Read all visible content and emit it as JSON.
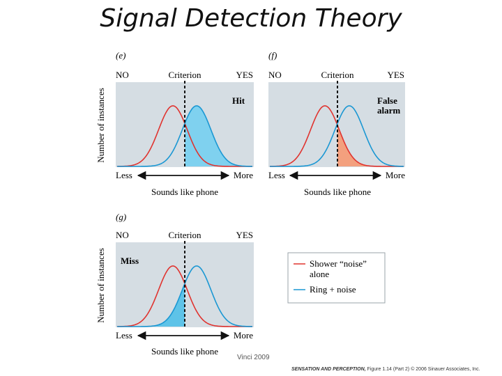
{
  "title": "Signal Detection Theory",
  "colors": {
    "noise": "#e0332f",
    "signal": "#1a97d3",
    "panel": "#d5dde3",
    "hit_fill": "#7fd1ef",
    "fa_fill": "#f3a07e",
    "miss_fill": "#5ec3e8"
  },
  "panels": [
    {
      "label": "(e)",
      "no": "NO",
      "criterion": "Criterion",
      "yes": "YES",
      "region_label": "Hit",
      "less": "Less",
      "more": "More",
      "xlabel": "Sounds like phone",
      "ylabel": "Number of instances"
    },
    {
      "label": "(f)",
      "no": "NO",
      "criterion": "Criterion",
      "yes": "YES",
      "region_label_line1": "False",
      "region_label_line2": "alarm",
      "less": "Less",
      "more": "More",
      "xlabel": "Sounds like phone"
    },
    {
      "label": "(g)",
      "no": "NO",
      "criterion": "Criterion",
      "yes": "YES",
      "region_label": "Miss",
      "less": "Less",
      "more": "More",
      "xlabel": "Sounds like phone",
      "ylabel": "Number of instances"
    }
  ],
  "legend": {
    "noise_line1": "Shower “noise”",
    "noise_line2": "alone",
    "signal": "Ring + noise"
  },
  "credit": "Vinci 2009",
  "footer": {
    "book": "SENSATION AND PERCEPTION,",
    "figure": "Figure 1.14 (Part 2)",
    "copyright": "© 2006 Sinauer Associates, Inc."
  }
}
